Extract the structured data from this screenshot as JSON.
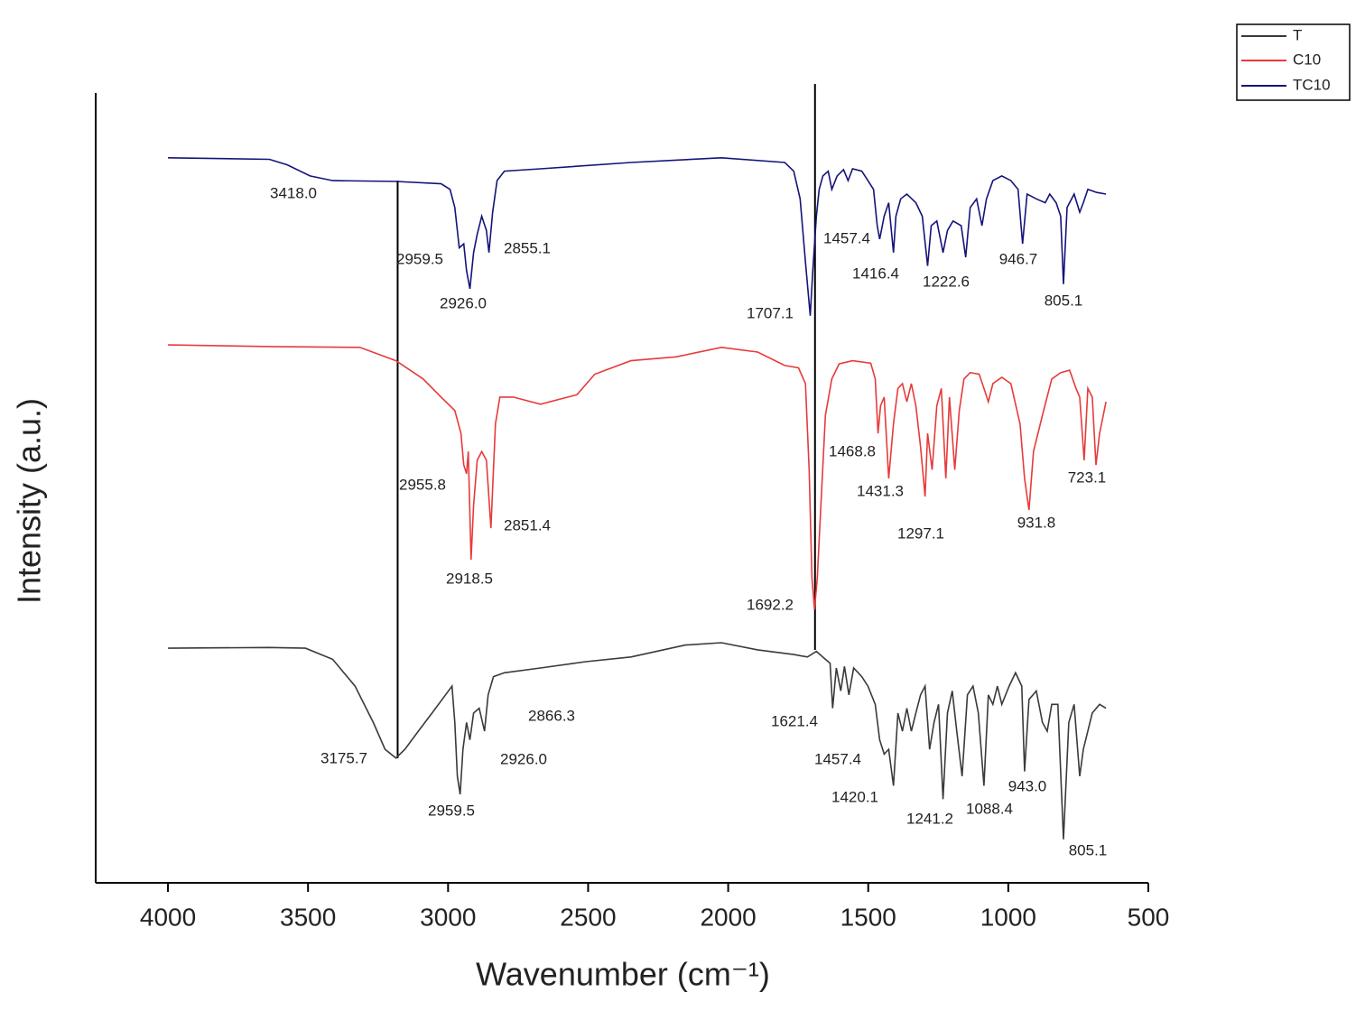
{
  "chart_data": {
    "type": "line",
    "xlabel": "Wavenumber (cm⁻¹)",
    "ylabel": "Intensity (a.u.)",
    "xlim": [
      4258,
      500
    ],
    "ylim": [
      0,
      100
    ],
    "xticks": [
      4000,
      3500,
      3000,
      2500,
      2000,
      1500,
      1000,
      500
    ],
    "reference_lines": [
      3180,
      1690
    ],
    "legend": "top-right",
    "series": [
      {
        "name": "T",
        "color": "#3a3a3a",
        "x": [
          4000,
          3638,
          3509,
          3412,
          3332,
          3267,
          3225,
          3186,
          3154,
          3106,
          3057,
          3009,
          2986,
          2976,
          2967,
          2957,
          2947,
          2934,
          2922,
          2909,
          2889,
          2870,
          2857,
          2838,
          2799,
          2670,
          2508,
          2347,
          2153,
          2024,
          1895,
          1766,
          1717,
          1685,
          1653,
          1636,
          1627,
          1614,
          1598,
          1585,
          1569,
          1552,
          1523,
          1501,
          1475,
          1459,
          1443,
          1427,
          1410,
          1394,
          1378,
          1362,
          1346,
          1330,
          1313,
          1297,
          1281,
          1265,
          1249,
          1233,
          1217,
          1200,
          1184,
          1165,
          1146,
          1126,
          1107,
          1087,
          1071,
          1055,
          1039,
          1023,
          997,
          974,
          952,
          942,
          926,
          900,
          878,
          861,
          845,
          823,
          803,
          784,
          765,
          745,
          732,
          700,
          674,
          651
        ],
        "values": [
          29.7,
          29.8,
          29.7,
          28.3,
          24.9,
          20.3,
          16.9,
          15.8,
          16.9,
          19.2,
          21.5,
          23.8,
          24.9,
          20.3,
          13.5,
          11.2,
          16.9,
          20.3,
          18.1,
          21.5,
          22.1,
          19.2,
          23.8,
          26.1,
          26.6,
          27.2,
          28.0,
          28.6,
          30.1,
          30.4,
          29.5,
          28.9,
          28.6,
          29.3,
          28.3,
          27.8,
          22.1,
          27.2,
          24.3,
          27.4,
          23.8,
          27.2,
          26.1,
          24.9,
          22.6,
          18.1,
          16.3,
          16.9,
          12.3,
          21.5,
          19.2,
          22.1,
          19.2,
          21.5,
          23.8,
          24.9,
          16.9,
          20.3,
          22.6,
          10.6,
          21.5,
          24.3,
          19.2,
          13.5,
          23.8,
          24.9,
          21.5,
          12.3,
          23.8,
          22.6,
          24.9,
          22.6,
          24.9,
          26.6,
          24.9,
          14.1,
          23.2,
          24.3,
          20.3,
          19.2,
          22.6,
          22.6,
          5.5,
          20.3,
          22.6,
          13.5,
          16.9,
          21.5,
          22.6,
          22.1
        ],
        "peaks": [
          {
            "value": 3175.7,
            "label": "3175.7"
          },
          {
            "value": 2926.0,
            "label": "2926.0"
          },
          {
            "value": 2959.5,
            "label": "2959.5"
          },
          {
            "value": 2866.3,
            "label": "2866.3"
          },
          {
            "value": 1621.4,
            "label": "1621.4"
          },
          {
            "value": 1457.4,
            "label": "1457.4"
          },
          {
            "value": 1420.1,
            "label": "1420.1"
          },
          {
            "value": 1241.2,
            "label": "1241.2"
          },
          {
            "value": 1088.4,
            "label": "1088.4"
          },
          {
            "value": 943.0,
            "label": "943.0"
          },
          {
            "value": 805.1,
            "label": "805.1"
          }
        ]
      },
      {
        "name": "C10",
        "color": "#e83a3a",
        "x": [
          4000,
          3638,
          3315,
          3186,
          3089,
          3025,
          2976,
          2954,
          2944,
          2934,
          2928,
          2918,
          2909,
          2896,
          2880,
          2863,
          2847,
          2831,
          2815,
          2767,
          2670,
          2540,
          2476,
          2347,
          2185,
          2024,
          1895,
          1798,
          1749,
          1724,
          1711,
          1701,
          1692,
          1682,
          1669,
          1653,
          1630,
          1604,
          1556,
          1491,
          1475,
          1465,
          1456,
          1443,
          1427,
          1410,
          1394,
          1378,
          1362,
          1346,
          1330,
          1313,
          1297,
          1288,
          1272,
          1255,
          1239,
          1223,
          1210,
          1191,
          1175,
          1158,
          1136,
          1104,
          1087,
          1071,
          1055,
          1023,
          991,
          958,
          942,
          926,
          910,
          878,
          845,
          813,
          781,
          758,
          745,
          729,
          716,
          700,
          687,
          674,
          651
        ],
        "values": [
          68.1,
          67.9,
          67.8,
          66.1,
          63.8,
          61.5,
          59.8,
          56.9,
          52.9,
          51.8,
          54.6,
          40.9,
          47.8,
          53.5,
          54.6,
          53.5,
          44.9,
          58.1,
          61.5,
          61.5,
          60.6,
          61.8,
          64.4,
          66.1,
          66.6,
          67.8,
          67.2,
          65.5,
          65.2,
          63.2,
          52.3,
          38.6,
          34.6,
          38.6,
          47.8,
          59.2,
          63.8,
          65.7,
          66.1,
          65.8,
          63.8,
          56.9,
          60.4,
          61.5,
          51.2,
          58.1,
          62.6,
          63.2,
          60.9,
          63.2,
          60.4,
          55.2,
          48.9,
          56.9,
          52.3,
          60.4,
          62.6,
          51.2,
          61.5,
          52.3,
          59.8,
          63.8,
          64.6,
          64.4,
          62.6,
          60.9,
          63.2,
          64.0,
          63.2,
          58.1,
          51.2,
          47.2,
          54.6,
          59.2,
          63.8,
          64.6,
          64.9,
          62.6,
          61.5,
          53.5,
          62.6,
          61.5,
          52.9,
          56.9,
          60.9
        ],
        "peaks": [
          {
            "value": 2955.8,
            "label": "2955.8"
          },
          {
            "value": 2918.5,
            "label": "2918.5"
          },
          {
            "value": 2851.4,
            "label": "2851.4"
          },
          {
            "value": 1692.2,
            "label": "1692.2"
          },
          {
            "value": 1468.8,
            "label": "1468.8"
          },
          {
            "value": 1431.3,
            "label": "1431.3"
          },
          {
            "value": 1297.1,
            "label": "1297.1"
          },
          {
            "value": 931.8,
            "label": "931.8"
          },
          {
            "value": 723.1,
            "label": "723.1"
          }
        ]
      },
      {
        "name": "TC10",
        "color": "#14147a",
        "x": [
          4000,
          3638,
          3574,
          3493,
          3412,
          3186,
          3025,
          2993,
          2976,
          2960,
          2944,
          2934,
          2922,
          2909,
          2896,
          2880,
          2863,
          2854,
          2841,
          2825,
          2799,
          2670,
          2347,
          2024,
          1798,
          1766,
          1743,
          1724,
          1707,
          1698,
          1685,
          1675,
          1662,
          1643,
          1630,
          1611,
          1588,
          1572,
          1556,
          1523,
          1501,
          1481,
          1468,
          1459,
          1443,
          1427,
          1410,
          1401,
          1384,
          1362,
          1330,
          1307,
          1288,
          1275,
          1255,
          1233,
          1217,
          1197,
          1168,
          1152,
          1136,
          1113,
          1094,
          1078,
          1055,
          1023,
          991,
          965,
          949,
          933,
          900,
          868,
          852,
          829,
          813,
          803,
          790,
          765,
          745,
          732,
          716,
          684,
          651
        ],
        "values": [
          91.8,
          91.6,
          90.9,
          89.5,
          88.9,
          88.8,
          88.5,
          87.8,
          85.5,
          80.4,
          80.9,
          77.5,
          75.2,
          79.8,
          82.1,
          84.4,
          82.6,
          79.8,
          84.9,
          88.9,
          90.1,
          90.4,
          91.2,
          91.8,
          91.2,
          90.1,
          86.6,
          78.6,
          71.8,
          77.5,
          84.4,
          87.8,
          89.5,
          90.1,
          87.8,
          89.5,
          90.3,
          88.9,
          90.4,
          90.1,
          88.9,
          87.8,
          83.2,
          81.5,
          84.4,
          86.1,
          79.8,
          84.4,
          86.6,
          87.2,
          86.1,
          84.4,
          78.1,
          83.2,
          83.8,
          79.8,
          82.6,
          83.8,
          83.2,
          79.2,
          85.5,
          86.6,
          83.2,
          86.6,
          88.9,
          89.5,
          88.9,
          87.8,
          80.9,
          87.2,
          86.6,
          86.1,
          87.2,
          86.1,
          84.4,
          75.8,
          85.5,
          87.2,
          84.9,
          86.1,
          87.8,
          87.4,
          87.2
        ],
        "peaks": [
          {
            "value": 3418.0,
            "label": "3418.0"
          },
          {
            "value": 2959.5,
            "label": "2959.5"
          },
          {
            "value": 2926.0,
            "label": "2926.0"
          },
          {
            "value": 2855.1,
            "label": "2855.1"
          },
          {
            "value": 1707.1,
            "label": "1707.1"
          },
          {
            "value": 1457.4,
            "label": "1457.4"
          },
          {
            "value": 1416.4,
            "label": "1416.4"
          },
          {
            "value": 1222.6,
            "label": "1222.6"
          },
          {
            "value": 946.7,
            "label": "946.7"
          },
          {
            "value": 805.1,
            "label": "805.1"
          }
        ]
      }
    ]
  }
}
